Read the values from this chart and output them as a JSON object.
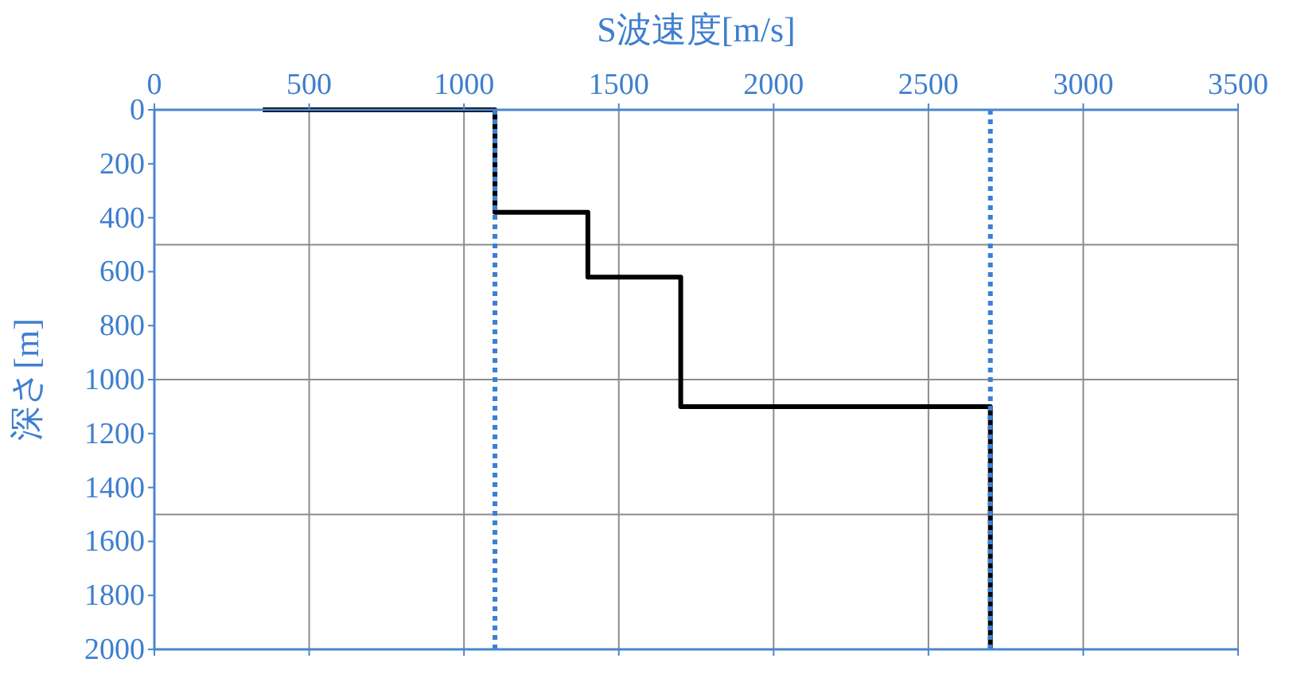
{
  "chart_data": {
    "type": "line",
    "xlabel": "S波速度[m/s]",
    "ylabel": "深さ[m]",
    "xlim": [
      0,
      3500
    ],
    "xticks": [
      0,
      500,
      1000,
      1500,
      2000,
      2500,
      3000,
      3500
    ],
    "ylim": [
      2000,
      0
    ],
    "yticks": [
      0,
      200,
      400,
      600,
      800,
      1000,
      1200,
      1400,
      1600,
      1800,
      2000
    ],
    "grid": "x",
    "line_style": "solid",
    "marker": "none",
    "series": [
      {
        "color": "#000000",
        "x": [
          350,
          1100,
          1100,
          1400,
          1400,
          1700,
          1700,
          2700,
          2700
        ],
        "values": [
          0,
          0,
          380,
          380,
          620,
          620,
          1100,
          1100,
          2000
        ]
      }
    ],
    "ref_lines": [
      {
        "axis": "x",
        "value": 1100,
        "color": "#3a7fd5",
        "line_style": "dotted"
      },
      {
        "axis": "x",
        "value": 2700,
        "color": "#3a7fd5",
        "line_style": "dotted"
      },
      {
        "axis": "y",
        "value": 500,
        "color": "#8c8c8c",
        "line_style": "solid"
      },
      {
        "axis": "y",
        "value": 1000,
        "color": "#8c8c8c",
        "line_style": "solid"
      },
      {
        "axis": "y",
        "value": 1500,
        "color": "#8c8c8c",
        "line_style": "solid"
      }
    ]
  }
}
